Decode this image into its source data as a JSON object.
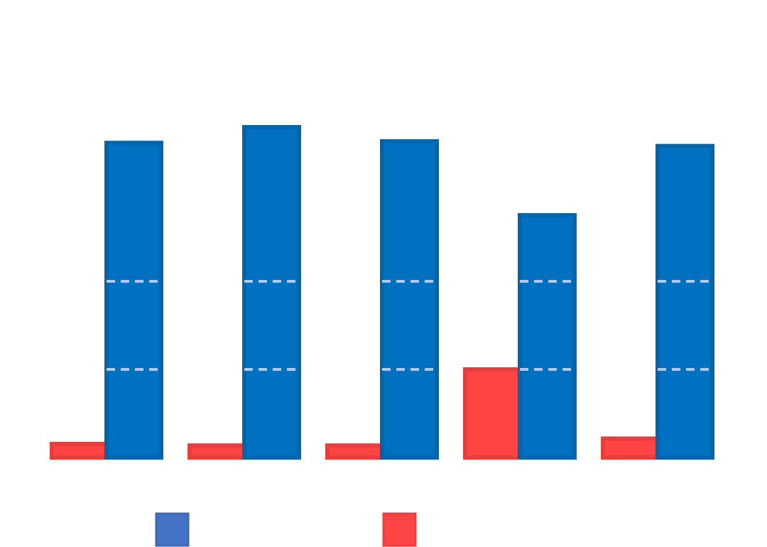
{
  "chart_data": {
    "type": "bar",
    "title": "",
    "xlabel": "",
    "ylabel": "",
    "categories": [
      "",
      "",
      "",
      "",
      ""
    ],
    "series": [
      {
        "values": [
          100,
          105,
          100.5,
          77,
          99
        ],
        "color": "#0070C0",
        "legend_color": "#4472C4"
      },
      {
        "values": [
          4.3,
          3.8,
          3.8,
          28,
          6.0
        ],
        "color": "#FF4444"
      }
    ],
    "ylim": [
      0,
      140
    ],
    "gridlines": [
      28,
      56
    ],
    "grid": true,
    "gridline_style": "dashed",
    "gridline_color": "#B4C7E7",
    "legend_position": "bottom"
  }
}
